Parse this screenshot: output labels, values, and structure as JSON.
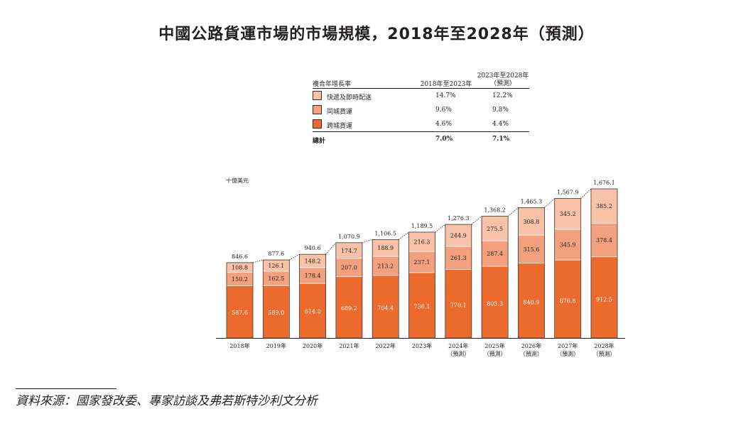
{
  "title": "中國公路貨運市場的市場規模，2018年至2028年（預測）",
  "cagr_table": {
    "header_label": "複合年增長率",
    "col1_header": "2018年至2023年",
    "col2_header_line1": "2023年至2028年",
    "col2_header_line2": "（預測）",
    "rows": [
      {
        "label": "快遞及即時配送",
        "v1": "14.7%",
        "v2": "12.2%",
        "color": "#f9c2a8"
      },
      {
        "label": "同城貨運",
        "v1": "9.6%",
        "v2": "9.8%",
        "color": "#f3a07e"
      },
      {
        "label": "跨城貨運",
        "v1": "4.6%",
        "v2": "4.4%",
        "color": "#ec6a2b"
      }
    ],
    "total_label": "總計",
    "total_v1": "7.0%",
    "total_v2": "7.1%"
  },
  "chart_data": {
    "type": "bar",
    "stacked": true,
    "unit_label": "十億美元",
    "categories": [
      "2018年",
      "2019年",
      "2020年",
      "2021年",
      "2022年",
      "2023年",
      "2024年",
      "2025年",
      "2026年",
      "2027年",
      "2028年"
    ],
    "forecast_note": "（預測）",
    "forecast_from_index": 6,
    "series": [
      {
        "name": "跨城貨運",
        "color": "#ec6a2b",
        "values": [
          587.6,
          589.0,
          614.0,
          689.2,
          704.4,
          736.1,
          770.1,
          805.3,
          840.9,
          876.8,
          912.5
        ]
      },
      {
        "name": "同城貨運",
        "color": "#f3a07e",
        "values": [
          150.2,
          162.5,
          178.4,
          207.0,
          213.2,
          237.1,
          261.3,
          287.4,
          315.6,
          345.9,
          378.4
        ]
      },
      {
        "name": "快遞及即時配送",
        "color": "#f9c2a8",
        "values": [
          108.8,
          126.1,
          148.2,
          174.7,
          188.9,
          216.3,
          244.9,
          275.5,
          308.8,
          345.2,
          385.2
        ]
      }
    ],
    "totals": [
      "846.6",
      "877.6",
      "940.6",
      "1,070.9",
      "1,106.5",
      "1,189.5",
      "1,276.3",
      "1,368.2",
      "1,465.3",
      "1,567.9",
      "1,676.1"
    ],
    "ylim": [
      0,
      1676.1
    ]
  },
  "source": "資料來源：國家發改委、專家訪談及弗若斯特沙利文分析"
}
